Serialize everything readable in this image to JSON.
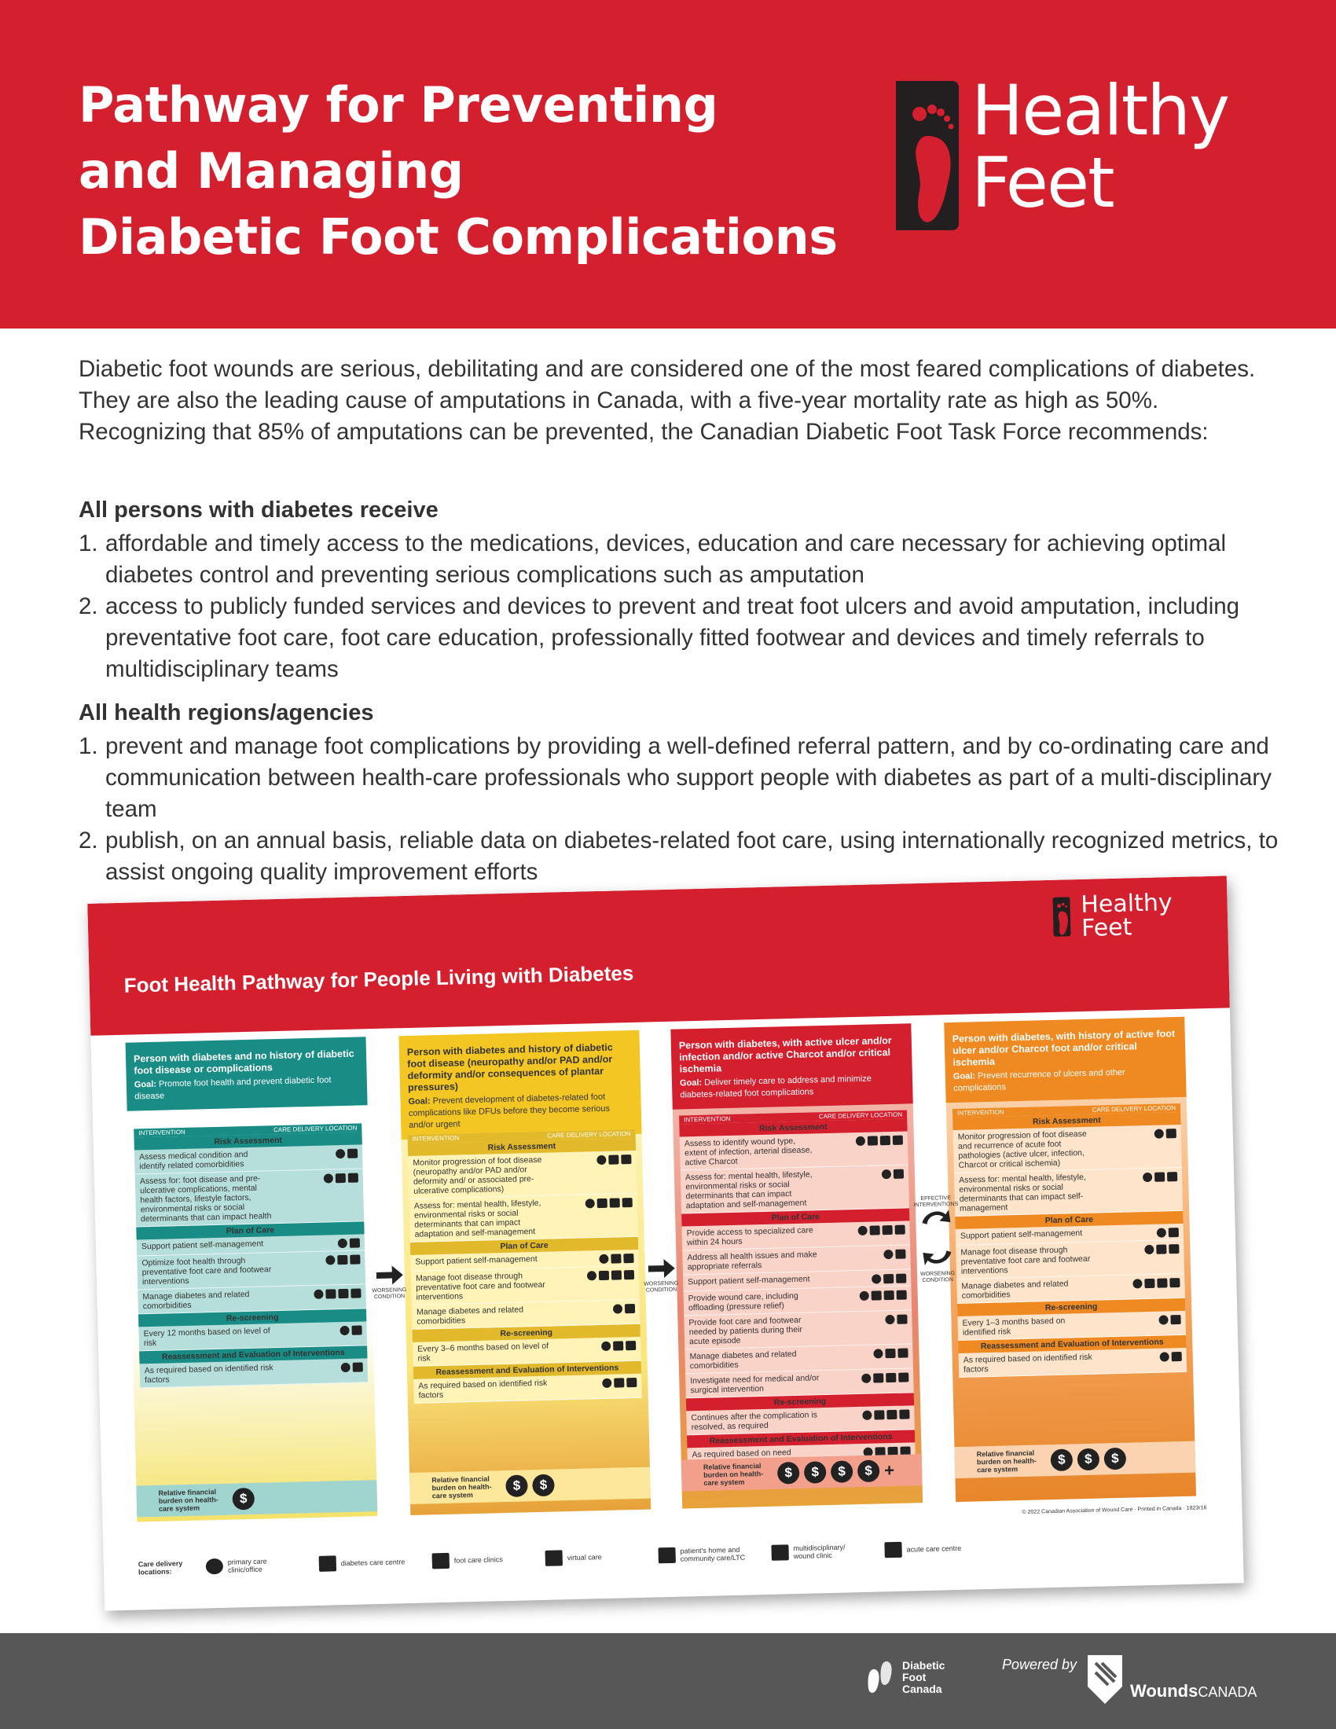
{
  "header": {
    "title_lines": [
      "Pathway for Preventing",
      "and Managing",
      "Diabetic Foot Complications"
    ],
    "brand_line1": "Healthy",
    "brand_line2": "Feet"
  },
  "intro": "Diabetic foot wounds are serious, debilitating and are considered one of the most feared complications of diabetes. They are also the leading cause of amputations in Canada, with a five-year mortality rate as high as 50%. Recognizing that 85% of amputations can be prevented, the Canadian Diabetic Foot Task Force recommends:",
  "sections": [
    {
      "heading": "All persons with diabetes receive",
      "items": [
        "affordable and timely access to the medications, devices, education and care necessary for achieving optimal diabetes control and preventing serious complications such as amputation",
        "access to publicly funded services and devices to prevent and treat foot ulcers and avoid amputation, including preventative foot care, foot care education, professionally fitted footwear and devices and timely referrals to multidisciplinary teams"
      ]
    },
    {
      "heading": "All health regions/agencies",
      "items": [
        "prevent and manage foot complications by providing a well-defined referral pattern, and by co-ordinating care and communication between health-care professionals who support people with diabetes as part of a multi-disciplinary team",
        "publish, on an annual basis, reliable data on diabetes-related foot care, using internationally recognized metrics, to assist ongoing quality improvement efforts"
      ]
    }
  ],
  "numbers": [
    "1.",
    "2."
  ],
  "poster": {
    "title": "Foot Health Pathway for People Living with Diabetes",
    "brand_line1": "Healthy",
    "brand_line2": "Feet",
    "intervention_label": "INTERVENTION",
    "location_label": "CARE DELIVERY LOCATION",
    "risk_label": "Risk Assessment",
    "plan_label": "Plan of Care",
    "rescreen_label": "Re-screening",
    "reassess_label": "Reassessment and Evaluation of Interventions",
    "goal_label": "Goal:",
    "worsening": "WORSENING CONDITION",
    "effective": "EFFECTIVE INTERVENTIONS",
    "burden_label": "Relative financial burden on health-care system",
    "coin": "$",
    "plus": "+",
    "copyright": "© 2022 Canadian Association of Wound Care · Printed in Canada · 1823r16",
    "columns": [
      {
        "title": "Person with diabetes and no history of diabetic foot disease or complications",
        "goal": "Promote foot health and prevent diabetic foot disease",
        "risk": [
          "Assess medical condition and identify related comorbidities",
          "Assess for: foot disease and pre-ulcerative complications, mental health factors, lifestyle factors, environmental risks or social determinants that can impact health"
        ],
        "plan": [
          "Support patient self-management",
          "Optimize foot health through preventative foot care and footwear interventions",
          "Manage diabetes and related comorbidities"
        ],
        "rescreen": [
          "Every 12 months based on level of risk"
        ],
        "reassess": [
          "As required based on identified risk factors"
        ],
        "coins": 1
      },
      {
        "title": "Person with diabetes and history of diabetic foot disease (neuropathy and/or PAD and/or deformity and/or consequences of plantar pressures)",
        "goal": "Prevent development of diabetes-related foot complications like DFUs before they become serious and/or urgent",
        "risk": [
          "Monitor progression of foot disease (neuropathy and/or PAD and/or deformity and/ or associated pre-ulcerative complications)",
          "Assess for: mental health, lifestyle, environmental risks or social determinants that can impact adaptation and self-management"
        ],
        "plan": [
          "Support patient self-management",
          "Manage foot disease through preventative foot care and footwear interventions",
          "Manage diabetes and related comorbidities"
        ],
        "rescreen": [
          "Every 3–6 months based on level of risk"
        ],
        "reassess": [
          "As required based on identified risk factors"
        ],
        "coins": 2
      },
      {
        "title": "Person with diabetes, with active ulcer and/or infection and/or active Charcot and/or critical ischemia",
        "goal": "Deliver timely care to address and minimize diabetes-related foot complications",
        "risk": [
          "Assess to identify wound type, extent of infection, arterial disease, active Charcot",
          "Assess for: mental health, lifestyle, environmental risks or social determinants that can impact adaptation and self-management"
        ],
        "plan": [
          "Provide access to specialized care within 24 hours",
          "Address all health issues and make appropriate referrals",
          "Support patient self-management",
          "Provide wound care, including offloading (pressure relief)",
          "Provide foot care and footwear needed by patients during their acute episode",
          "Manage diabetes and related comorbidities",
          "Investigate need for medical and/or surgical intervention"
        ],
        "rescreen": [
          "Continues after the complication is resolved, as required"
        ],
        "reassess": [
          "As required based on need"
        ],
        "coins": 4
      },
      {
        "title": "Person with diabetes, with history of active foot ulcer and/or Charcot foot and/or critical ischemia",
        "goal": "Prevent recurrence of ulcers and other complications",
        "risk": [
          "Monitor progression of foot disease and recurrence of acute foot pathologies (active ulcer, infection, Charcot or critical ischemia)",
          "Assess for: mental health, lifestyle, environmental risks or social determinants that can impact self-management"
        ],
        "plan": [
          "Support patient self-management",
          "Manage foot disease through preventative foot care and footwear interventions",
          "Manage diabetes and related comorbidities"
        ],
        "rescreen": [
          "Every 1–3 months based on identified risk"
        ],
        "reassess": [
          "As required based on identified risk factors"
        ],
        "coins": 3
      }
    ],
    "legend_title": "Care delivery locations:",
    "legend": [
      "primary care clinic/office",
      "diabetes care centre",
      "foot care clinics",
      "virtual care",
      "patient's home and community care/LTC",
      "multidisciplinary/ wound clinic",
      "acute care centre"
    ]
  },
  "footer": {
    "dfc_line1": "Diabetic",
    "dfc_line2": "Foot",
    "dfc_line3": "Canada",
    "powered": "Powered by",
    "wounds_bold": "Wounds",
    "wounds_rest": "CANADA"
  },
  "colors": {
    "brand_red": "#d4202e",
    "teal": "#1a8c86",
    "yellow": "#f3c623",
    "orange": "#ef8a22",
    "footer_gray": "#575757"
  }
}
